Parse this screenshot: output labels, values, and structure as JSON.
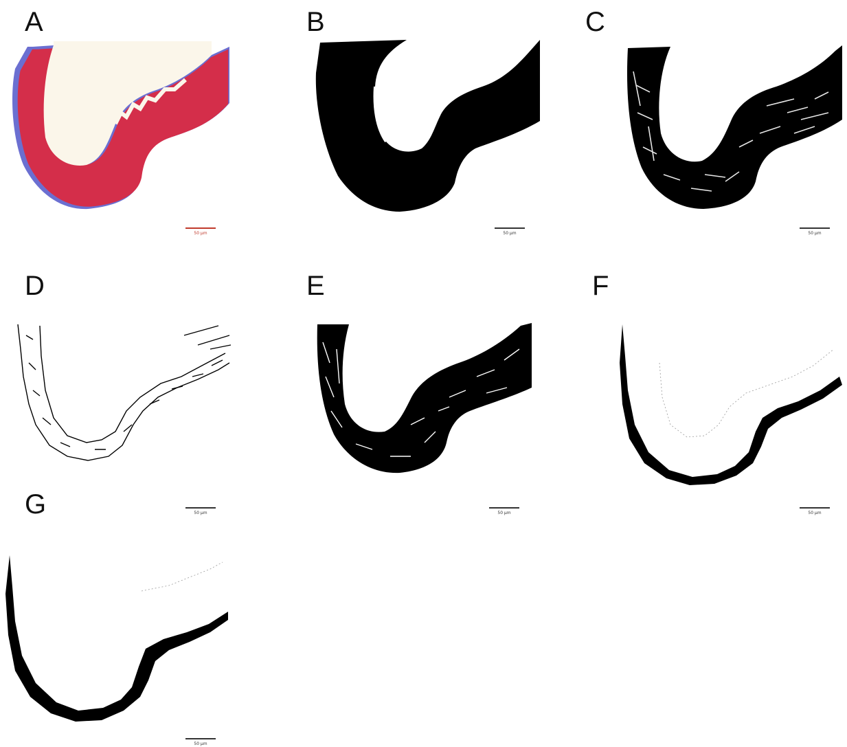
{
  "panels": [
    {
      "label": "A",
      "scale_text": "50 µm",
      "style": "color"
    },
    {
      "label": "B",
      "scale_text": "50 µm",
      "style": "solid"
    },
    {
      "label": "C",
      "scale_text": "50 µm",
      "style": "dense"
    },
    {
      "label": "D",
      "scale_text": "50 µm",
      "style": "sparse"
    },
    {
      "label": "E",
      "scale_text": "50 µm",
      "style": "dense"
    },
    {
      "label": "F",
      "scale_text": "50 µm",
      "style": "outer"
    },
    {
      "label": "G",
      "scale_text": "50 µm",
      "style": "outer"
    }
  ],
  "colors": {
    "stain_red": "#d42e4a",
    "stain_blue": "#6b6fd1",
    "lumen": "#fbf6ea",
    "ink": "#000000"
  }
}
